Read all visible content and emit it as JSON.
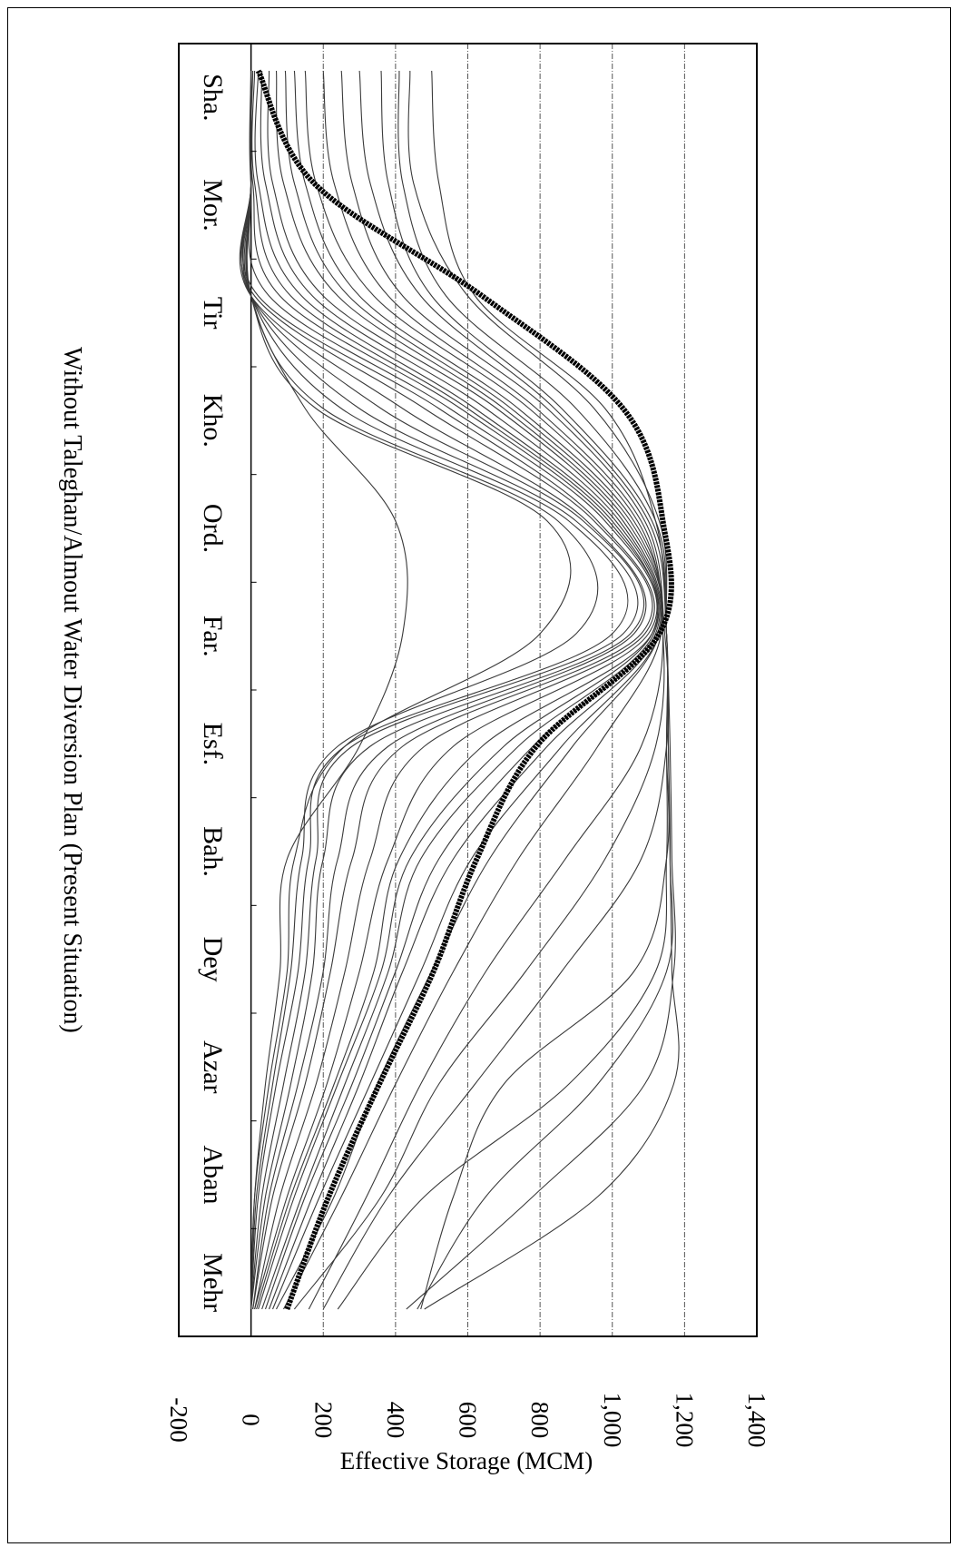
{
  "chart_data": {
    "type": "line",
    "title": "Without Taleghan/Almout Water Diversion Plan (Present Situation)",
    "xlabel": "",
    "ylabel": "Effective Storage (MCM)",
    "categories": [
      "Mehr",
      "Aban",
      "Azar",
      "Dey",
      "Bah.",
      "Esf.",
      "Far.",
      "Ord.",
      "Kho.",
      "Tir",
      "Mor.",
      "Sha."
    ],
    "yticks": [
      "1,400",
      "1,200",
      "1,000",
      "800",
      "600",
      "400",
      "200",
      "0",
      "-200"
    ],
    "ylim": [
      -200,
      1400
    ],
    "grid": true,
    "legend": "none",
    "orientation": "rotated 90° clockwise",
    "colors": {
      "thin": "#3a3a3a",
      "mean": "#000000",
      "grid": "#555555"
    },
    "series": [
      {
        "role": "mean",
        "values": [
          100,
          215,
          355,
          505,
          625,
          790,
          1130,
          1140,
          1030,
          640,
          175,
          20
        ]
      },
      {
        "role": "year",
        "values": [
          480,
          960,
          1170,
          1165,
          1160,
          1155,
          1150,
          1120,
          980,
          620,
          520,
          500
        ]
      },
      {
        "role": "year",
        "values": [
          430,
          780,
          1090,
          1170,
          1165,
          1160,
          1150,
          1130,
          950,
          600,
          450,
          440
        ]
      },
      {
        "role": "year",
        "values": [
          460,
          650,
          960,
          1150,
          1160,
          1155,
          1150,
          1120,
          900,
          540,
          420,
          410
        ]
      },
      {
        "role": "year",
        "values": [
          470,
          560,
          700,
          1060,
          1150,
          1150,
          1150,
          1110,
          860,
          500,
          380,
          360
        ]
      },
      {
        "role": "year",
        "values": [
          240,
          480,
          880,
          1120,
          1150,
          1150,
          1150,
          1100,
          840,
          470,
          330,
          300
        ]
      },
      {
        "role": "year",
        "values": [
          200,
          380,
          620,
          860,
          1080,
          1150,
          1145,
          1090,
          820,
          420,
          280,
          250
        ]
      },
      {
        "role": "year",
        "values": [
          120,
          360,
          520,
          760,
          980,
          1120,
          1140,
          1080,
          790,
          380,
          230,
          200
        ]
      },
      {
        "role": "year",
        "values": [
          160,
          320,
          470,
          650,
          870,
          1080,
          1140,
          1070,
          770,
          340,
          180,
          150
        ]
      },
      {
        "role": "year",
        "values": [
          90,
          250,
          400,
          560,
          740,
          960,
          1135,
          1060,
          740,
          300,
          150,
          120
        ]
      },
      {
        "role": "year",
        "values": [
          70,
          230,
          350,
          500,
          660,
          890,
          1130,
          1050,
          720,
          270,
          120,
          95
        ]
      },
      {
        "role": "year",
        "values": [
          60,
          190,
          330,
          470,
          610,
          860,
          1130,
          1040,
          700,
          240,
          90,
          70
        ]
      },
      {
        "role": "year",
        "values": [
          50,
          170,
          300,
          420,
          560,
          820,
          1125,
          1030,
          680,
          200,
          60,
          50
        ]
      },
      {
        "role": "year",
        "values": [
          40,
          150,
          280,
          400,
          520,
          780,
          1120,
          1020,
          650,
          170,
          40,
          30
        ]
      },
      {
        "role": "year",
        "values": [
          30,
          140,
          260,
          380,
          470,
          740,
          1115,
          1010,
          620,
          140,
          20,
          20
        ]
      },
      {
        "role": "year",
        "values": [
          20,
          120,
          240,
          360,
          440,
          700,
          1110,
          1000,
          600,
          110,
          10,
          10
        ]
      },
      {
        "role": "year",
        "values": [
          15,
          110,
          230,
          340,
          410,
          640,
          1110,
          990,
          580,
          80,
          5,
          5
        ]
      },
      {
        "role": "year",
        "values": [
          10,
          100,
          210,
          300,
          380,
          560,
          1100,
          980,
          550,
          50,
          0,
          0
        ]
      },
      {
        "role": "year",
        "values": [
          10,
          80,
          180,
          260,
          330,
          480,
          1090,
          960,
          520,
          20,
          0,
          0
        ]
      },
      {
        "role": "year",
        "values": [
          5,
          60,
          150,
          220,
          280,
          420,
          1080,
          950,
          480,
          10,
          0,
          0
        ]
      },
      {
        "role": "year",
        "values": [
          5,
          50,
          130,
          200,
          240,
          380,
          1060,
          930,
          420,
          0,
          0,
          0
        ]
      },
      {
        "role": "year",
        "values": [
          0,
          40,
          110,
          170,
          200,
          330,
          1050,
          920,
          360,
          0,
          0,
          0
        ]
      },
      {
        "role": "year",
        "values": [
          0,
          30,
          90,
          150,
          180,
          280,
          1030,
          900,
          300,
          0,
          0,
          0
        ]
      },
      {
        "role": "year",
        "values": [
          0,
          20,
          70,
          130,
          160,
          260,
          1000,
          880,
          250,
          0,
          0,
          0
        ]
      },
      {
        "role": "year",
        "values": [
          0,
          15,
          60,
          110,
          140,
          240,
          900,
          850,
          200,
          0,
          0,
          0
        ]
      },
      {
        "role": "year",
        "values": [
          0,
          10,
          50,
          100,
          120,
          260,
          800,
          820,
          180,
          0,
          0,
          0
        ]
      },
      {
        "role": "year",
        "values": [
          0,
          10,
          40,
          80,
          100,
          300,
          420,
          400,
          150,
          0,
          0,
          0
        ]
      }
    ]
  }
}
